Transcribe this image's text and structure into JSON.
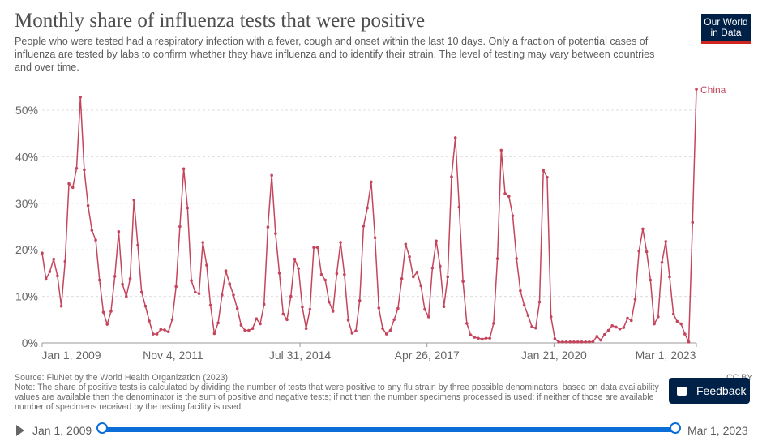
{
  "header": {
    "title": "Monthly share of influenza tests that were positive",
    "subtitle": "People who were tested had a respiratory infection with a fever, cough and onset within the last 10 days. Only a fraction of potential cases of influenza are tested by labs to confirm whether they have influenza and to identify their strain. The level of testing may vary between countries and over time.",
    "logo": "Our World in Data"
  },
  "footer": {
    "source": "Source: FluNet by the World Health Organization (2023)",
    "note_1": "Note: The share of positive tests is calculated by dividing the number of tests that were positive to any flu strain by three possible denominators, based on data availability",
    "note_2": "values are available then the denominator is the sum of positive and negative tests; if not then the number specimens processed is used; if neither of those are available",
    "note_3": "number of specimens received by the testing facility is used.",
    "license": "CC BY"
  },
  "feedback_label": "Feedback",
  "timeline": {
    "start": "Jan 1, 2009",
    "end": "Mar 1, 2023"
  },
  "colors": {
    "series": "#c4455c",
    "brand": "#002147",
    "accent": "#0b6ed8"
  },
  "chart_data": {
    "type": "line",
    "title": "Monthly share of influenza tests that were positive",
    "xlabel": "",
    "ylabel": "",
    "x_start": "2009-01",
    "x_end": "2023-03",
    "x_interval": "monthly",
    "ylim": [
      0,
      55
    ],
    "yticks": [
      0,
      10,
      20,
      30,
      40,
      50
    ],
    "ytick_labels": [
      "0%",
      "10%",
      "20%",
      "30%",
      "40%",
      "50%"
    ],
    "xtick_labels": [
      {
        "label": "Jan 1, 2009",
        "month_index": 0
      },
      {
        "label": "Nov 4, 2011",
        "month_index": 34
      },
      {
        "label": "Jul 31, 2014",
        "month_index": 67
      },
      {
        "label": "Apr 26, 2017",
        "month_index": 100
      },
      {
        "label": "Jan 21, 2020",
        "month_index": 133
      },
      {
        "label": "Mar 1, 2023",
        "month_index": 170
      }
    ],
    "grid": true,
    "series": [
      {
        "name": "China",
        "values": [
          19.3,
          13.7,
          15.3,
          18,
          14.4,
          7.9,
          17.5,
          34.2,
          33.4,
          37.5,
          52.8,
          37.2,
          29.5,
          24.2,
          22.1,
          13.5,
          6.6,
          4,
          6.8,
          14.3,
          23.9,
          12.6,
          10,
          13.8,
          30.7,
          21,
          10.9,
          7.9,
          4.7,
          1.9,
          1.9,
          2.9,
          2.8,
          2.4,
          5,
          12.1,
          25,
          37.4,
          29,
          13.4,
          10.9,
          10.6,
          21.6,
          16.7,
          8.1,
          2,
          4.3,
          10.3,
          15.5,
          12.7,
          10.3,
          7.4,
          3.8,
          2.7,
          2.7,
          3.1,
          5.2,
          4.1,
          8.3,
          24.9,
          36,
          23.5,
          15,
          6.2,
          5,
          10,
          18,
          16,
          7.7,
          3.1,
          7.2,
          20.5,
          20.5,
          14.7,
          13.5,
          8.8,
          6.8,
          14.9,
          21.6,
          14.7,
          4.9,
          2.1,
          2.6,
          9.1,
          25.1,
          29,
          34.6,
          22.6,
          7.5,
          3.1,
          1.9,
          2.7,
          5,
          7.4,
          13.8,
          21.2,
          18.5,
          14.2,
          15.2,
          12.3,
          7.2,
          5.6,
          16.1,
          21.9,
          16.5,
          7.8,
          14.2,
          35.7,
          44.1,
          29.2,
          13.2,
          4.2,
          1.7,
          1.2,
          1,
          0.8,
          1,
          1,
          4.2,
          18.1,
          41.4,
          32.1,
          31.5,
          27.3,
          18.1,
          11.2,
          8.1,
          5.9,
          3.5,
          3.2,
          8.8,
          37.1,
          35.6,
          5.6,
          0.9,
          0.2,
          0.2,
          0.2,
          0.2,
          0.2,
          0.2,
          0.2,
          0.2,
          0.2,
          0.3,
          1.4,
          0.6,
          1.8,
          2.7,
          3.7,
          3.4,
          3,
          3.3,
          5.3,
          4.8,
          9.4,
          19.7,
          24.5,
          19.6,
          13.5,
          4.1,
          5.6,
          17.3,
          21.8,
          14.2,
          6.2,
          4.6,
          4.1,
          1.9,
          0.2,
          25.9,
          54.5
        ]
      }
    ]
  }
}
